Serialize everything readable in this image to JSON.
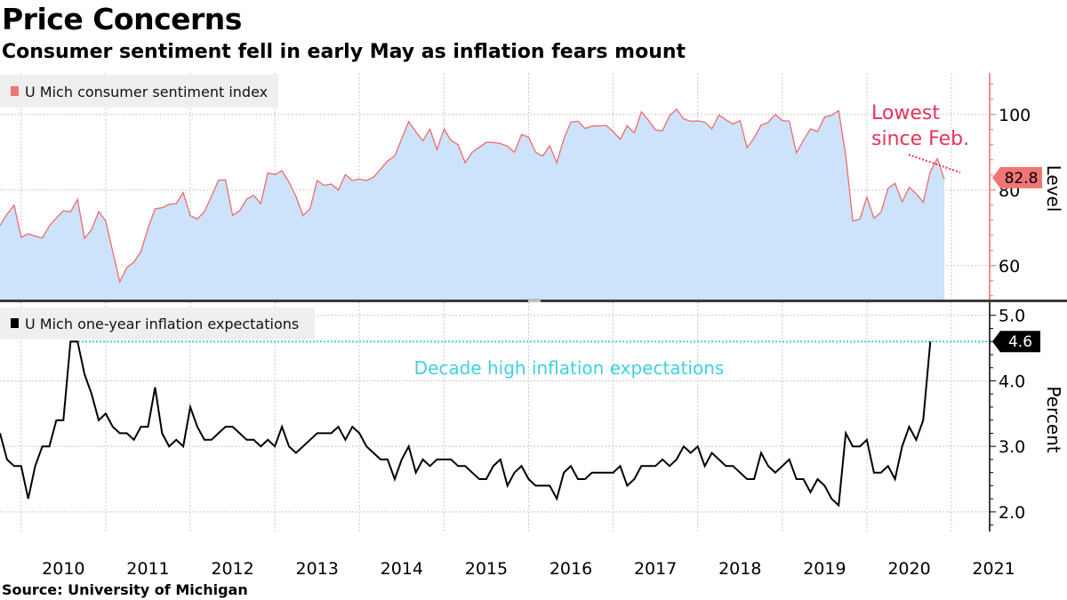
{
  "header": {
    "title": "Price Concerns",
    "subtitle": "Consumer sentiment fell in early May as inflation fears mount"
  },
  "source": "Source: University of Michigan",
  "colors": {
    "sentiment_line": "#f06a6a",
    "sentiment_fill": "#cde3fb",
    "sentiment_marker": "#f07575",
    "annotation": "#e8335a",
    "inflation_line": "#000000",
    "decade_high_line": "#3fd0e0",
    "grid": "#c8c8c8"
  },
  "chart_data": [
    {
      "type": "area",
      "panel": "top",
      "legend": "U Mich consumer sentiment index",
      "ylabel": "Level",
      "yticks": [
        60,
        80,
        100
      ],
      "ytick_labels": [
        "60",
        "80",
        "100"
      ],
      "ylim": [
        51,
        111
      ],
      "x_start": 2009.75,
      "x_step": 0.0833333,
      "values": [
        70.6,
        73.6,
        76.0,
        67.5,
        68.4,
        67.8,
        67.3,
        70.5,
        72.6,
        74.5,
        74.2,
        77.5,
        67.2,
        69.5,
        74.3,
        71.8,
        63.7,
        55.7,
        59.5,
        60.9,
        63.7,
        69.9,
        75.0,
        75.3,
        76.2,
        76.4,
        79.3,
        73.2,
        72.3,
        74.3,
        78.3,
        82.6,
        82.7,
        73.3,
        74.5,
        77.6,
        78.6,
        76.4,
        84.5,
        84.1,
        85.1,
        82.1,
        78.3,
        73.2,
        75.1,
        82.5,
        81.2,
        81.6,
        80.0,
        84.1,
        82.5,
        82.9,
        82.5,
        83.4,
        85.5,
        87.7,
        89.0,
        93.6,
        98.1,
        95.4,
        93.0,
        96.1,
        90.7,
        96.1,
        93.1,
        92.0,
        87.2,
        90.0,
        91.3,
        92.6,
        92.6,
        92.3,
        91.6,
        90.0,
        94.7,
        94.0,
        90.0,
        89.0,
        91.7,
        87.2,
        93.5,
        98.0,
        98.2,
        96.3,
        96.9,
        97.0,
        97.1,
        95.5,
        93.4,
        97.0,
        95.1,
        100.7,
        98.5,
        95.9,
        95.7,
        99.7,
        101.4,
        98.8,
        98.2,
        98.3,
        98.0,
        96.2,
        99.9,
        98.6,
        97.5,
        98.4,
        91.2,
        93.8,
        97.2,
        97.9,
        100.0,
        98.4,
        98.2,
        89.8,
        93.2,
        96.2,
        95.5,
        99.3,
        99.8,
        101.0,
        89.1,
        71.8,
        72.3,
        78.1,
        72.5,
        74.1,
        80.4,
        81.8,
        76.9,
        80.7,
        79.0,
        76.8,
        84.9,
        88.3,
        82.8
      ],
      "last_value_label": "82.8",
      "annotation": {
        "line1": "Lowest",
        "line2": "since Feb."
      }
    },
    {
      "type": "line",
      "panel": "bottom",
      "legend": "U Mich one-year inflation expectations",
      "ylabel": "Percent",
      "yticks": [
        2.0,
        3.0,
        4.0,
        5.0
      ],
      "ytick_labels": [
        "2.0",
        "3.0",
        "4.0",
        "5.0"
      ],
      "ylim": [
        1.7,
        5.2
      ],
      "x_start": 2009.75,
      "x_step": 0.0833333,
      "values": [
        3.2,
        2.8,
        2.7,
        2.7,
        2.2,
        2.7,
        3.0,
        3.0,
        3.4,
        3.4,
        4.6,
        4.6,
        4.1,
        3.8,
        3.4,
        3.5,
        3.3,
        3.2,
        3.2,
        3.1,
        3.3,
        3.3,
        3.9,
        3.2,
        3.0,
        3.1,
        3.0,
        3.6,
        3.3,
        3.1,
        3.1,
        3.2,
        3.3,
        3.3,
        3.2,
        3.1,
        3.1,
        3.0,
        3.1,
        3.0,
        3.3,
        3.0,
        2.9,
        3.0,
        3.1,
        3.2,
        3.2,
        3.2,
        3.3,
        3.1,
        3.3,
        3.2,
        3.0,
        2.9,
        2.8,
        2.8,
        2.5,
        2.8,
        3.0,
        2.6,
        2.8,
        2.7,
        2.8,
        2.8,
        2.8,
        2.7,
        2.7,
        2.6,
        2.5,
        2.5,
        2.7,
        2.8,
        2.4,
        2.6,
        2.7,
        2.5,
        2.4,
        2.4,
        2.4,
        2.2,
        2.6,
        2.7,
        2.5,
        2.5,
        2.6,
        2.6,
        2.6,
        2.6,
        2.7,
        2.4,
        2.5,
        2.7,
        2.7,
        2.7,
        2.8,
        2.7,
        2.8,
        3.0,
        2.9,
        3.0,
        2.7,
        2.9,
        2.8,
        2.7,
        2.7,
        2.6,
        2.5,
        2.5,
        2.9,
        2.7,
        2.6,
        2.7,
        2.8,
        2.5,
        2.5,
        2.3,
        2.5,
        2.4,
        2.2,
        2.1,
        3.2,
        3.0,
        3.0,
        3.1,
        2.6,
        2.6,
        2.7,
        2.5,
        3.0,
        3.3,
        3.1,
        3.4,
        4.6
      ],
      "last_value_label": "4.6",
      "reference_line": {
        "value": 4.6,
        "label": "Decade high inflation expectations"
      }
    }
  ],
  "x_axis": {
    "years": [
      2010,
      2011,
      2012,
      2013,
      2014,
      2015,
      2016,
      2017,
      2018,
      2019,
      2020,
      2021
    ],
    "labels": [
      "2010",
      "2011",
      "2012",
      "2013",
      "2014",
      "2015",
      "2016",
      "2017",
      "2018",
      "2019",
      "2020",
      "2021"
    ],
    "xlim": [
      2009.75,
      2021.42
    ]
  }
}
